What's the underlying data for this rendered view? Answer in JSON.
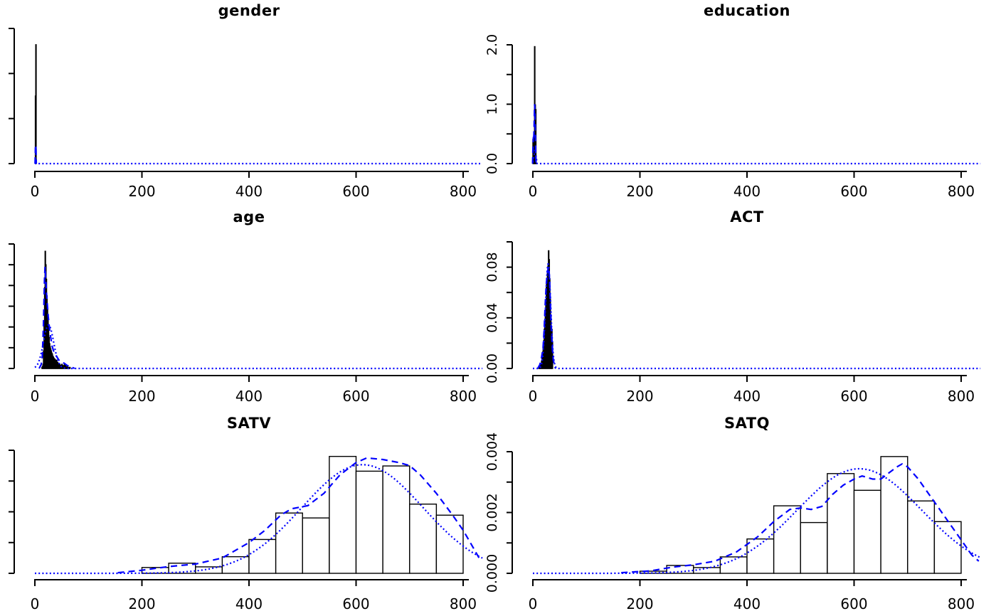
{
  "figure": {
    "background": "#ffffff",
    "ink_color": "#000000",
    "curve_color": "#0000ff",
    "bar_fill": "#ffffff"
  },
  "chart_data": [
    {
      "type": "histogram+density",
      "title": "gender",
      "row": 0,
      "col": 0,
      "xlim": [
        0,
        836
      ],
      "x_ticks": [
        0,
        200,
        400,
        600,
        800
      ],
      "x_tick_labels": [
        "0",
        "200",
        "400",
        "600",
        "800"
      ],
      "ylim": [
        0,
        1.5
      ],
      "y_ticks": [
        0,
        0.5,
        1.0,
        1.5
      ],
      "y_labels": [],
      "bars": [
        [
          0.8,
          1.6,
          0.75
        ],
        [
          1.6,
          2.4,
          1.32
        ]
      ],
      "normal": {
        "mean": 1.65,
        "sd": 0.48,
        "step": 4
      },
      "kde": [
        [
          0.4,
          0
        ],
        [
          0.8,
          0.1
        ],
        [
          1.0,
          0.18
        ],
        [
          1.3,
          0.12
        ],
        [
          1.6,
          0.15
        ],
        [
          2.0,
          0.2
        ],
        [
          2.3,
          0.1
        ],
        [
          2.6,
          0
        ]
      ]
    },
    {
      "type": "histogram+density",
      "title": "education",
      "row": 0,
      "col": 1,
      "xlim": [
        0,
        836
      ],
      "x_ticks": [
        0,
        200,
        400,
        600,
        800
      ],
      "x_tick_labels": [
        "0",
        "200",
        "400",
        "600",
        "800"
      ],
      "ylim": [
        0,
        2.0
      ],
      "y_ticks": [
        0,
        0.5,
        1.0,
        1.5,
        2.0
      ],
      "y_labels": [
        {
          "v": 0,
          "t": "0.0"
        },
        {
          "v": 1.0,
          "t": "1.0"
        },
        {
          "v": 2.0,
          "t": "2.0"
        }
      ],
      "bars": [
        [
          0,
          0.2,
          0.41
        ],
        [
          1,
          1.2,
          0.42
        ],
        [
          2,
          2.2,
          0.31
        ],
        [
          3,
          3.2,
          1.97
        ],
        [
          4,
          4.2,
          0.99
        ],
        [
          5,
          5.2,
          0.91
        ]
      ],
      "normal": {
        "mean": 3.16,
        "sd": 1.43,
        "step": 4
      },
      "kde": [
        [
          -0.5,
          0
        ],
        [
          0,
          0.2
        ],
        [
          0.5,
          0.35
        ],
        [
          1,
          0.45
        ],
        [
          1.5,
          0.4
        ],
        [
          2,
          0.5
        ],
        [
          2.5,
          0.7
        ],
        [
          3,
          0.95
        ],
        [
          3.3,
          1.0
        ],
        [
          3.6,
          0.95
        ],
        [
          4,
          0.85
        ],
        [
          4.5,
          0.6
        ],
        [
          5,
          0.4
        ],
        [
          5.5,
          0.15
        ],
        [
          6,
          0
        ]
      ]
    },
    {
      "type": "histogram+density",
      "title": "age",
      "row": 1,
      "col": 0,
      "xlim": [
        0,
        836
      ],
      "x_ticks": [
        0,
        200,
        400,
        600,
        800
      ],
      "x_tick_labels": [
        "0",
        "200",
        "400",
        "600",
        "800"
      ],
      "ylim": [
        0,
        0.12
      ],
      "y_ticks": [
        0,
        0.02,
        0.04,
        0.06,
        0.08,
        0.1,
        0.12
      ],
      "y_labels": [],
      "hist": {
        "bin_start": 13,
        "bin_width": 1,
        "densities": [
          0.001,
          0.002,
          0.004,
          0.017,
          0.045,
          0.078,
          0.113,
          0.1,
          0.086,
          0.07,
          0.057,
          0.047,
          0.037,
          0.03,
          0.024,
          0.021,
          0.019,
          0.017,
          0.015,
          0.014,
          0.012,
          0.011,
          0.01,
          0.009,
          0.009,
          0.008,
          0.007,
          0.008,
          0.006,
          0.006,
          0.005,
          0.005,
          0.004,
          0.004,
          0.003,
          0.003,
          0.003,
          0.004,
          0.003,
          0.003,
          0.002,
          0.002,
          0.004,
          0.002,
          0.003,
          0.001,
          0.001,
          0.002,
          0.001,
          0.001,
          0.001,
          0.001,
          0.001
        ]
      },
      "normal": {
        "mean": 25.6,
        "sd": 9.5,
        "step": 1
      },
      "kde": [
        [
          8,
          0
        ],
        [
          12,
          0.004
        ],
        [
          14,
          0.012
        ],
        [
          16,
          0.04
        ],
        [
          18,
          0.085
        ],
        [
          19,
          0.098
        ],
        [
          20,
          0.09
        ],
        [
          22,
          0.07
        ],
        [
          25,
          0.05
        ],
        [
          28,
          0.035
        ],
        [
          32,
          0.022
        ],
        [
          36,
          0.015
        ],
        [
          40,
          0.012
        ],
        [
          45,
          0.008
        ],
        [
          50,
          0.006
        ],
        [
          55,
          0.005
        ],
        [
          60,
          0.003
        ],
        [
          65,
          0.002
        ],
        [
          70,
          0.001
        ],
        [
          74,
          0
        ]
      ]
    },
    {
      "type": "histogram+density",
      "title": "ACT",
      "row": 1,
      "col": 1,
      "xlim": [
        0,
        836
      ],
      "x_ticks": [
        0,
        200,
        400,
        600,
        800
      ],
      "x_tick_labels": [
        "0",
        "200",
        "400",
        "600",
        "800"
      ],
      "ylim": [
        0,
        0.1
      ],
      "y_ticks": [
        0,
        0.02,
        0.04,
        0.06,
        0.08,
        0.1
      ],
      "y_labels": [
        {
          "v": 0,
          "t": "0.00"
        },
        {
          "v": 0.04,
          "t": "0.04"
        },
        {
          "v": 0.08,
          "t": "0.08"
        }
      ],
      "hist": {
        "bin_start": 11,
        "bin_width": 1,
        "densities": [
          0.001,
          0.001,
          0.002,
          0.003,
          0.004,
          0.006,
          0.009,
          0.013,
          0.016,
          0.022,
          0.031,
          0.036,
          0.046,
          0.051,
          0.066,
          0.071,
          0.076,
          0.081,
          0.093,
          0.086,
          0.071,
          0.056,
          0.041,
          0.026,
          0.031,
          0.021
        ]
      },
      "normal": {
        "mean": 28.5,
        "sd": 4.82,
        "step": 1
      },
      "kde": [
        [
          9,
          0
        ],
        [
          13,
          0.003
        ],
        [
          16,
          0.008
        ],
        [
          19,
          0.016
        ],
        [
          21,
          0.03
        ],
        [
          23,
          0.05
        ],
        [
          25,
          0.066
        ],
        [
          27,
          0.075
        ],
        [
          29,
          0.08
        ],
        [
          30,
          0.078
        ],
        [
          31,
          0.072
        ],
        [
          32,
          0.06
        ],
        [
          34,
          0.035
        ],
        [
          36,
          0.018
        ],
        [
          38,
          0.007
        ],
        [
          41,
          0.001
        ],
        [
          43,
          0
        ]
      ]
    },
    {
      "type": "histogram+density",
      "title": "SATV",
      "row": 2,
      "col": 0,
      "xlim": [
        0,
        836
      ],
      "x_ticks": [
        0,
        200,
        400,
        600,
        800
      ],
      "x_tick_labels": [
        "0",
        "200",
        "400",
        "600",
        "800"
      ],
      "ylim": [
        0,
        0.004
      ],
      "y_ticks": [
        0,
        0.001,
        0.002,
        0.003,
        0.004
      ],
      "y_labels": [],
      "hist": {
        "bin_start": 200,
        "bin_width": 50,
        "densities": [
          0.00019,
          0.00033,
          0.00021,
          0.00054,
          0.0011,
          0.00196,
          0.0018,
          0.0038,
          0.00332,
          0.00349,
          0.00225,
          0.00189
        ]
      },
      "normal": {
        "mean": 612,
        "sd": 113,
        "step": 2
      },
      "kde": [
        [
          155,
          2e-05
        ],
        [
          200,
          0.0001
        ],
        [
          250,
          0.00022
        ],
        [
          300,
          0.0003
        ],
        [
          350,
          0.0005
        ],
        [
          400,
          0.001
        ],
        [
          430,
          0.0014
        ],
        [
          460,
          0.0019
        ],
        [
          480,
          0.0021
        ],
        [
          510,
          0.0022
        ],
        [
          540,
          0.0026
        ],
        [
          570,
          0.0032
        ],
        [
          600,
          0.0036
        ],
        [
          620,
          0.00375
        ],
        [
          650,
          0.0037
        ],
        [
          680,
          0.0036
        ],
        [
          700,
          0.0035
        ],
        [
          720,
          0.0032
        ],
        [
          750,
          0.0026
        ],
        [
          780,
          0.0019
        ],
        [
          800,
          0.0014
        ],
        [
          820,
          0.0008
        ],
        [
          833,
          0.0004
        ]
      ]
    },
    {
      "type": "histogram+density",
      "title": "SATQ",
      "row": 2,
      "col": 1,
      "xlim": [
        0,
        836
      ],
      "x_ticks": [
        0,
        200,
        400,
        600,
        800
      ],
      "x_tick_labels": [
        "0",
        "200",
        "400",
        "600",
        "800"
      ],
      "ylim": [
        0,
        0.004
      ],
      "y_ticks": [
        0,
        0.001,
        0.002,
        0.003,
        0.004
      ],
      "y_labels": [
        {
          "v": 0,
          "t": "0.000"
        },
        {
          "v": 0.002,
          "t": "0.002"
        },
        {
          "v": 0.004,
          "t": "0.004"
        }
      ],
      "hist": {
        "bin_start": 200,
        "bin_width": 50,
        "densities": [
          7e-05,
          0.00026,
          0.00019,
          0.00054,
          0.00113,
          0.00222,
          0.00167,
          0.00328,
          0.00273,
          0.00384,
          0.00238,
          0.0017
        ]
      },
      "normal": {
        "mean": 610,
        "sd": 116,
        "step": 2
      },
      "kde": [
        [
          165,
          2e-05
        ],
        [
          220,
          8e-05
        ],
        [
          260,
          0.0002
        ],
        [
          300,
          0.00028
        ],
        [
          340,
          0.0004
        ],
        [
          380,
          0.0007
        ],
        [
          420,
          0.0012
        ],
        [
          450,
          0.0017
        ],
        [
          480,
          0.0021
        ],
        [
          500,
          0.00215
        ],
        [
          520,
          0.0021
        ],
        [
          540,
          0.0022
        ],
        [
          560,
          0.0026
        ],
        [
          580,
          0.0029
        ],
        [
          600,
          0.0031
        ],
        [
          615,
          0.0032
        ],
        [
          635,
          0.0031
        ],
        [
          650,
          0.0031
        ],
        [
          665,
          0.0033
        ],
        [
          680,
          0.0035
        ],
        [
          690,
          0.0036
        ],
        [
          700,
          0.0035
        ],
        [
          720,
          0.0031
        ],
        [
          740,
          0.0026
        ],
        [
          760,
          0.0021
        ],
        [
          780,
          0.0016
        ],
        [
          800,
          0.0011
        ],
        [
          820,
          0.0006
        ],
        [
          833,
          0.0004
        ]
      ]
    }
  ]
}
